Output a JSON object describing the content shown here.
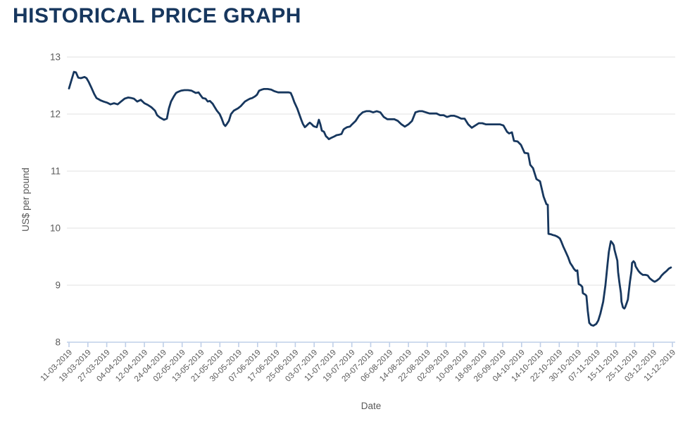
{
  "page": {
    "title": "HISTORICAL PRICE GRAPH",
    "title_color": "#17375e"
  },
  "chart_data": {
    "type": "line",
    "title": "HISTORICAL PRICE GRAPH",
    "xlabel": "Date",
    "ylabel": "US$ per pound",
    "ylim": [
      8,
      13
    ],
    "yticks": [
      8,
      9,
      10,
      11,
      12,
      13
    ],
    "grid": "horizontal",
    "legend": "none",
    "x_tick_labels": [
      "11-03-2019",
      "19-03-2019",
      "27-03-2019",
      "04-04-2019",
      "12-04-2019",
      "24-04-2019",
      "02-05-2019",
      "13-05-2019",
      "21-05-2019",
      "30-05-2019",
      "07-06-2019",
      "17-06-2019",
      "25-06-2019",
      "03-07-2019",
      "11-07-2019",
      "19-07-2019",
      "29-07-2019",
      "06-08-2019",
      "14-08-2019",
      "22-08-2019",
      "02-09-2019",
      "10-09-2019",
      "18-09-2019",
      "26-09-2019",
      "04-10-2019",
      "14-10-2019",
      "22-10-2019",
      "30-10-2019",
      "07-11-2019",
      "15-11-2019",
      "25-11-2019",
      "03-12-2019",
      "11-12-2019"
    ],
    "colors": {
      "line": "#17375e",
      "grid": "#e2e2e2",
      "axis": "#bfcfe8",
      "tick_label": "#595959",
      "axis_title": "#595959"
    },
    "series": [
      {
        "name": "US$ per pound",
        "color": "#17375e",
        "points": [
          [
            0.0,
            12.45
          ],
          [
            0.11,
            12.57
          ],
          [
            0.26,
            12.74
          ],
          [
            0.37,
            12.73
          ],
          [
            0.49,
            12.64
          ],
          [
            0.63,
            12.63
          ],
          [
            0.82,
            12.65
          ],
          [
            0.93,
            12.63
          ],
          [
            1.05,
            12.56
          ],
          [
            1.19,
            12.46
          ],
          [
            1.34,
            12.35
          ],
          [
            1.46,
            12.28
          ],
          [
            1.57,
            12.26
          ],
          [
            1.68,
            12.24
          ],
          [
            1.83,
            12.22
          ],
          [
            2.02,
            12.2
          ],
          [
            2.2,
            12.17
          ],
          [
            2.39,
            12.19
          ],
          [
            2.58,
            12.17
          ],
          [
            2.76,
            12.22
          ],
          [
            2.95,
            12.27
          ],
          [
            3.14,
            12.29
          ],
          [
            3.32,
            12.28
          ],
          [
            3.44,
            12.27
          ],
          [
            3.62,
            12.22
          ],
          [
            3.81,
            12.25
          ],
          [
            4.0,
            12.19
          ],
          [
            4.18,
            12.16
          ],
          [
            4.37,
            12.12
          ],
          [
            4.56,
            12.06
          ],
          [
            4.67,
            11.98
          ],
          [
            4.82,
            11.94
          ],
          [
            4.93,
            11.92
          ],
          [
            5.04,
            11.9
          ],
          [
            5.19,
            11.92
          ],
          [
            5.3,
            12.1
          ],
          [
            5.41,
            12.22
          ],
          [
            5.56,
            12.31
          ],
          [
            5.68,
            12.37
          ],
          [
            5.79,
            12.39
          ],
          [
            5.94,
            12.41
          ],
          [
            6.12,
            12.42
          ],
          [
            6.31,
            12.42
          ],
          [
            6.5,
            12.41
          ],
          [
            6.61,
            12.39
          ],
          [
            6.72,
            12.37
          ],
          [
            6.87,
            12.38
          ],
          [
            6.98,
            12.33
          ],
          [
            7.09,
            12.28
          ],
          [
            7.24,
            12.27
          ],
          [
            7.36,
            12.22
          ],
          [
            7.47,
            12.23
          ],
          [
            7.62,
            12.18
          ],
          [
            7.73,
            12.12
          ],
          [
            7.84,
            12.06
          ],
          [
            7.99,
            12.0
          ],
          [
            8.1,
            11.92
          ],
          [
            8.21,
            11.82
          ],
          [
            8.29,
            11.79
          ],
          [
            8.36,
            11.82
          ],
          [
            8.48,
            11.88
          ],
          [
            8.59,
            12.0
          ],
          [
            8.74,
            12.06
          ],
          [
            8.85,
            12.08
          ],
          [
            8.96,
            12.1
          ],
          [
            9.11,
            12.14
          ],
          [
            9.22,
            12.18
          ],
          [
            9.33,
            12.22
          ],
          [
            9.48,
            12.25
          ],
          [
            9.6,
            12.27
          ],
          [
            9.71,
            12.28
          ],
          [
            9.86,
            12.31
          ],
          [
            9.97,
            12.34
          ],
          [
            10.08,
            12.41
          ],
          [
            10.23,
            12.43
          ],
          [
            10.34,
            12.44
          ],
          [
            10.53,
            12.44
          ],
          [
            10.72,
            12.43
          ],
          [
            10.9,
            12.4
          ],
          [
            11.09,
            12.38
          ],
          [
            11.28,
            12.38
          ],
          [
            11.46,
            12.38
          ],
          [
            11.65,
            12.38
          ],
          [
            11.76,
            12.37
          ],
          [
            11.84,
            12.31
          ],
          [
            11.95,
            12.21
          ],
          [
            12.1,
            12.1
          ],
          [
            12.21,
            12.0
          ],
          [
            12.32,
            11.9
          ],
          [
            12.4,
            11.83
          ],
          [
            12.51,
            11.77
          ],
          [
            12.58,
            11.79
          ],
          [
            12.7,
            11.83
          ],
          [
            12.77,
            11.85
          ],
          [
            12.88,
            11.82
          ],
          [
            12.96,
            11.79
          ],
          [
            13.03,
            11.78
          ],
          [
            13.14,
            11.77
          ],
          [
            13.25,
            11.9
          ],
          [
            13.33,
            11.82
          ],
          [
            13.41,
            11.71
          ],
          [
            13.52,
            11.69
          ],
          [
            13.63,
            11.61
          ],
          [
            13.7,
            11.59
          ],
          [
            13.78,
            11.56
          ],
          [
            13.89,
            11.58
          ],
          [
            14.08,
            11.61
          ],
          [
            14.19,
            11.63
          ],
          [
            14.34,
            11.64
          ],
          [
            14.45,
            11.65
          ],
          [
            14.56,
            11.73
          ],
          [
            14.64,
            11.75
          ],
          [
            14.75,
            11.77
          ],
          [
            14.9,
            11.78
          ],
          [
            15.01,
            11.82
          ],
          [
            15.2,
            11.88
          ],
          [
            15.38,
            11.97
          ],
          [
            15.57,
            12.03
          ],
          [
            15.76,
            12.05
          ],
          [
            15.95,
            12.05
          ],
          [
            16.13,
            12.03
          ],
          [
            16.32,
            12.05
          ],
          [
            16.51,
            12.03
          ],
          [
            16.69,
            11.95
          ],
          [
            16.88,
            11.91
          ],
          [
            17.07,
            11.91
          ],
          [
            17.25,
            11.91
          ],
          [
            17.44,
            11.88
          ],
          [
            17.63,
            11.82
          ],
          [
            17.81,
            11.78
          ],
          [
            18.0,
            11.82
          ],
          [
            18.19,
            11.88
          ],
          [
            18.37,
            12.03
          ],
          [
            18.56,
            12.05
          ],
          [
            18.74,
            12.05
          ],
          [
            18.93,
            12.03
          ],
          [
            19.12,
            12.01
          ],
          [
            19.31,
            12.01
          ],
          [
            19.49,
            12.01
          ],
          [
            19.68,
            11.98
          ],
          [
            19.87,
            11.98
          ],
          [
            20.05,
            11.95
          ],
          [
            20.24,
            11.97
          ],
          [
            20.43,
            11.97
          ],
          [
            20.61,
            11.95
          ],
          [
            20.8,
            11.92
          ],
          [
            20.98,
            11.92
          ],
          [
            21.17,
            11.82
          ],
          [
            21.36,
            11.76
          ],
          [
            21.55,
            11.8
          ],
          [
            21.73,
            11.84
          ],
          [
            21.92,
            11.84
          ],
          [
            22.1,
            11.82
          ],
          [
            22.48,
            11.82
          ],
          [
            22.85,
            11.82
          ],
          [
            23.04,
            11.8
          ],
          [
            23.23,
            11.69
          ],
          [
            23.34,
            11.66
          ],
          [
            23.49,
            11.68
          ],
          [
            23.6,
            11.53
          ],
          [
            23.79,
            11.52
          ],
          [
            23.97,
            11.46
          ],
          [
            24.16,
            11.32
          ],
          [
            24.35,
            11.31
          ],
          [
            24.46,
            11.11
          ],
          [
            24.61,
            11.05
          ],
          [
            24.79,
            10.86
          ],
          [
            24.98,
            10.82
          ],
          [
            25.17,
            10.55
          ],
          [
            25.32,
            10.42
          ],
          [
            25.39,
            10.41
          ],
          [
            25.43,
            9.9
          ],
          [
            25.58,
            9.89
          ],
          [
            25.65,
            9.88
          ],
          [
            25.77,
            9.87
          ],
          [
            25.91,
            9.85
          ],
          [
            26.03,
            9.82
          ],
          [
            26.1,
            9.77
          ],
          [
            26.21,
            9.68
          ],
          [
            26.32,
            9.6
          ],
          [
            26.47,
            9.49
          ],
          [
            26.58,
            9.39
          ],
          [
            26.7,
            9.33
          ],
          [
            26.77,
            9.29
          ],
          [
            26.88,
            9.25
          ],
          [
            26.96,
            9.26
          ],
          [
            27.03,
            9.02
          ],
          [
            27.14,
            9.0
          ],
          [
            27.22,
            8.97
          ],
          [
            27.25,
            8.86
          ],
          [
            27.4,
            8.83
          ],
          [
            27.44,
            8.81
          ],
          [
            27.51,
            8.55
          ],
          [
            27.59,
            8.34
          ],
          [
            27.7,
            8.3
          ],
          [
            27.81,
            8.29
          ],
          [
            27.96,
            8.32
          ],
          [
            28.07,
            8.38
          ],
          [
            28.18,
            8.5
          ],
          [
            28.33,
            8.71
          ],
          [
            28.45,
            9.0
          ],
          [
            28.56,
            9.37
          ],
          [
            28.63,
            9.58
          ],
          [
            28.71,
            9.73
          ],
          [
            28.74,
            9.77
          ],
          [
            28.82,
            9.74
          ],
          [
            28.89,
            9.7
          ],
          [
            28.93,
            9.62
          ],
          [
            29.08,
            9.43
          ],
          [
            29.12,
            9.23
          ],
          [
            29.19,
            9.05
          ],
          [
            29.27,
            8.86
          ],
          [
            29.3,
            8.71
          ],
          [
            29.38,
            8.61
          ],
          [
            29.45,
            8.59
          ],
          [
            29.49,
            8.61
          ],
          [
            29.57,
            8.68
          ],
          [
            29.64,
            8.75
          ],
          [
            29.68,
            8.87
          ],
          [
            29.75,
            9.06
          ],
          [
            29.83,
            9.25
          ],
          [
            29.86,
            9.39
          ],
          [
            29.94,
            9.42
          ],
          [
            30.01,
            9.39
          ],
          [
            30.05,
            9.33
          ],
          [
            30.2,
            9.25
          ],
          [
            30.31,
            9.21
          ],
          [
            30.43,
            9.18
          ],
          [
            30.57,
            9.18
          ],
          [
            30.69,
            9.17
          ],
          [
            30.8,
            9.12
          ],
          [
            30.95,
            9.08
          ],
          [
            31.06,
            9.06
          ],
          [
            31.17,
            9.08
          ],
          [
            31.32,
            9.12
          ],
          [
            31.43,
            9.17
          ],
          [
            31.55,
            9.21
          ],
          [
            31.69,
            9.25
          ],
          [
            31.81,
            9.29
          ],
          [
            31.92,
            9.31
          ]
        ]
      }
    ]
  }
}
